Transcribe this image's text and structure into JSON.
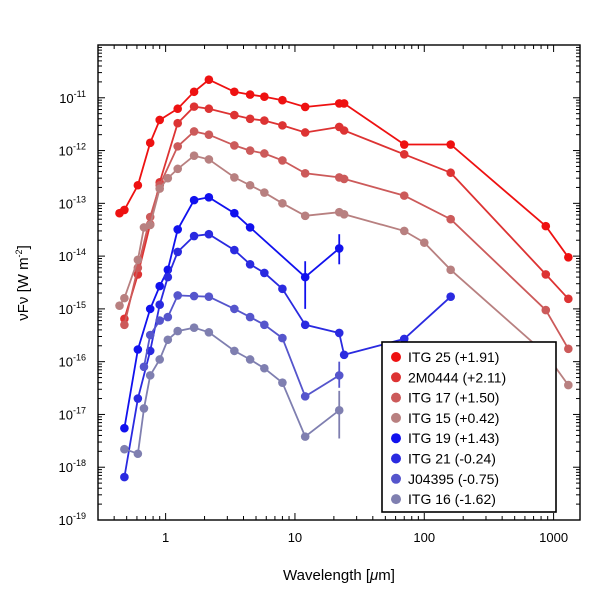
{
  "chart_data": {
    "type": "line",
    "xlabel_prefix": "Wavelength [",
    "xlabel_mu": "μ",
    "xlabel_suffix": "m]",
    "ylabel_main": "νFν [W m",
    "ylabel_sup": "-2",
    "ylabel_close": "]",
    "x_scale": "log",
    "y_scale": "log",
    "xlim": [
      0.3,
      1600
    ],
    "ylim": [
      1e-19,
      1e-10
    ],
    "x_ticks": [
      1,
      10,
      100,
      1000
    ],
    "x_tick_labels": [
      "1",
      "10",
      "100",
      "1000"
    ],
    "y_ticks": [
      -19,
      -18,
      -17,
      -16,
      -15,
      -14,
      -13,
      -12,
      -11
    ],
    "y_tick_base": "10",
    "y_tick_exps": [
      "-19",
      "-18",
      "-17",
      "-16",
      "-15",
      "-14",
      "-13",
      "-12",
      "-11"
    ],
    "legend_position": "lower-right",
    "series": [
      {
        "name": "ITG 25 (+1.91)",
        "color": "#ee1111",
        "points": [
          {
            "x": 0.44,
            "y": 6.5e-14
          },
          {
            "x": 0.48,
            "y": 7.5e-14
          },
          {
            "x": 0.61,
            "y": 2.2e-13
          },
          {
            "x": 0.76,
            "y": 1.4e-12
          },
          {
            "x": 0.9,
            "y": 3.8e-12
          },
          {
            "x": 1.24,
            "y": 6.2e-12
          },
          {
            "x": 1.66,
            "y": 1.3e-11
          },
          {
            "x": 2.16,
            "y": 2.2e-11
          },
          {
            "x": 3.4,
            "y": 1.3e-11
          },
          {
            "x": 4.5,
            "y": 1.15e-11
          },
          {
            "x": 5.8,
            "y": 1.05e-11
          },
          {
            "x": 8.0,
            "y": 9e-12
          },
          {
            "x": 12,
            "y": 6.7e-12
          },
          {
            "x": 22,
            "y": 7.8e-12
          },
          {
            "x": 24,
            "y": 7.8e-12
          },
          {
            "x": 70,
            "y": 1.3e-12
          },
          {
            "x": 160,
            "y": 1.3e-12
          },
          {
            "x": 870,
            "y": 3.7e-14
          },
          {
            "x": 1300,
            "y": 9.5e-15
          }
        ]
      },
      {
        "name": "2M0444 (+2.11)",
        "color": "#dd3333",
        "points": [
          {
            "x": 0.48,
            "y": 6.5e-16
          },
          {
            "x": 0.61,
            "y": 4.5e-15
          },
          {
            "x": 0.76,
            "y": 4e-14
          },
          {
            "x": 0.9,
            "y": 2.5e-13
          },
          {
            "x": 1.24,
            "y": 3.3e-12
          },
          {
            "x": 1.66,
            "y": 6.8e-12
          },
          {
            "x": 2.16,
            "y": 6.2e-12
          },
          {
            "x": 3.4,
            "y": 4.7e-12
          },
          {
            "x": 4.5,
            "y": 4e-12
          },
          {
            "x": 5.8,
            "y": 3.7e-12
          },
          {
            "x": 8.0,
            "y": 3e-12
          },
          {
            "x": 12,
            "y": 2.2e-12
          },
          {
            "x": 22,
            "y": 2.8e-12
          },
          {
            "x": 24,
            "y": 2.4e-12
          },
          {
            "x": 70,
            "y": 8.5e-13
          },
          {
            "x": 160,
            "y": 3.8e-13
          },
          {
            "x": 870,
            "y": 4.5e-15
          },
          {
            "x": 1300,
            "y": 1.55e-15
          }
        ]
      },
      {
        "name": "ITG 17 (+1.50)",
        "color": "#cc5a5a",
        "points": [
          {
            "x": 0.48,
            "y": 5e-16
          },
          {
            "x": 0.61,
            "y": 6e-15
          },
          {
            "x": 0.76,
            "y": 5.5e-14
          },
          {
            "x": 0.9,
            "y": 2.2e-13
          },
          {
            "x": 1.24,
            "y": 1.2e-12
          },
          {
            "x": 1.66,
            "y": 2.3e-12
          },
          {
            "x": 2.16,
            "y": 2e-12
          },
          {
            "x": 3.4,
            "y": 1.25e-12
          },
          {
            "x": 4.5,
            "y": 1e-12
          },
          {
            "x": 5.8,
            "y": 8.8e-13
          },
          {
            "x": 8.0,
            "y": 6.5e-13
          },
          {
            "x": 12,
            "y": 3.7e-13
          },
          {
            "x": 22,
            "y": 3.1e-13
          },
          {
            "x": 24,
            "y": 2.9e-13
          },
          {
            "x": 70,
            "y": 1.4e-13
          },
          {
            "x": 160,
            "y": 5e-14
          },
          {
            "x": 870,
            "y": 9.5e-16
          },
          {
            "x": 1300,
            "y": 1.75e-16
          }
        ]
      },
      {
        "name": "ITG 15 (+0.42)",
        "color": "#b88080",
        "points": [
          {
            "x": 0.44,
            "y": 1.15e-15
          },
          {
            "x": 0.48,
            "y": 1.6e-15
          },
          {
            "x": 0.61,
            "y": 8.5e-15
          },
          {
            "x": 0.68,
            "y": 3.5e-14
          },
          {
            "x": 0.76,
            "y": 3.9e-14
          },
          {
            "x": 0.9,
            "y": 1.9e-13
          },
          {
            "x": 1.04,
            "y": 3e-13
          },
          {
            "x": 1.24,
            "y": 4.5e-13
          },
          {
            "x": 1.66,
            "y": 8e-13
          },
          {
            "x": 2.16,
            "y": 6.8e-13
          },
          {
            "x": 3.4,
            "y": 3.1e-13
          },
          {
            "x": 4.5,
            "y": 2.2e-13
          },
          {
            "x": 5.8,
            "y": 1.6e-13
          },
          {
            "x": 8.0,
            "y": 1e-13
          },
          {
            "x": 12,
            "y": 5.8e-14
          },
          {
            "x": 22,
            "y": 6.8e-14
          },
          {
            "x": 24,
            "y": 6.2e-14
          },
          {
            "x": 70,
            "y": 3e-14
          },
          {
            "x": 100,
            "y": 1.8e-14
          },
          {
            "x": 160,
            "y": 5.5e-15
          },
          {
            "x": 870,
            "y": 1.4e-16
          },
          {
            "x": 1300,
            "y": 3.6e-17
          }
        ]
      },
      {
        "name": "ITG 19 (+1.43)",
        "color": "#1111ee",
        "points": [
          {
            "x": 0.48,
            "y": 5.5e-18
          },
          {
            "x": 0.61,
            "y": 1.7e-16
          },
          {
            "x": 0.76,
            "y": 1e-15
          },
          {
            "x": 0.9,
            "y": 2.7e-15
          },
          {
            "x": 1.04,
            "y": 5.5e-15
          },
          {
            "x": 1.24,
            "y": 3.2e-14
          },
          {
            "x": 1.66,
            "y": 1.15e-13
          },
          {
            "x": 2.16,
            "y": 1.3e-13
          },
          {
            "x": 3.4,
            "y": 6.5e-14
          },
          {
            "x": 4.5,
            "y": 3.5e-14
          },
          {
            "x": 12,
            "y": 4e-15,
            "err": [
              1e-15,
              8e-15
            ]
          },
          {
            "x": 22,
            "y": 1.4e-14,
            "err": [
              7e-15,
              2.6e-14
            ]
          }
        ]
      },
      {
        "name": "ITG 21 (-0.24)",
        "color": "#2a2ae0",
        "points": [
          {
            "x": 0.48,
            "y": 6.5e-19
          },
          {
            "x": 0.61,
            "y": 2e-17
          },
          {
            "x": 0.76,
            "y": 1.6e-16
          },
          {
            "x": 0.9,
            "y": 1.2e-15
          },
          {
            "x": 1.04,
            "y": 4e-15
          },
          {
            "x": 1.24,
            "y": 1.2e-14
          },
          {
            "x": 1.66,
            "y": 2.4e-14
          },
          {
            "x": 2.16,
            "y": 2.6e-14
          },
          {
            "x": 3.4,
            "y": 1.3e-14
          },
          {
            "x": 4.5,
            "y": 7e-15
          },
          {
            "x": 5.8,
            "y": 4.8e-15
          },
          {
            "x": 8.0,
            "y": 2.4e-15
          },
          {
            "x": 12,
            "y": 5e-16
          },
          {
            "x": 22,
            "y": 3.5e-16
          },
          {
            "x": 24,
            "y": 1.35e-16
          },
          {
            "x": 70,
            "y": 2.7e-16
          },
          {
            "x": 160,
            "y": 1.7e-15
          }
        ]
      },
      {
        "name": "J04395 (-0.75)",
        "color": "#5555cc",
        "points": [
          {
            "x": 0.68,
            "y": 8e-17
          },
          {
            "x": 0.76,
            "y": 3.2e-16
          },
          {
            "x": 0.9,
            "y": 6e-16
          },
          {
            "x": 1.04,
            "y": 7e-16
          },
          {
            "x": 1.24,
            "y": 1.8e-15
          },
          {
            "x": 1.66,
            "y": 1.75e-15
          },
          {
            "x": 2.16,
            "y": 1.7e-15
          },
          {
            "x": 3.4,
            "y": 1e-15
          },
          {
            "x": 4.5,
            "y": 7e-16
          },
          {
            "x": 5.8,
            "y": 5e-16
          },
          {
            "x": 8.0,
            "y": 2.8e-16
          },
          {
            "x": 12,
            "y": 2.2e-17
          },
          {
            "x": 22,
            "y": 5.5e-17,
            "err": [
              3.2e-17,
              1e-16
            ]
          }
        ]
      },
      {
        "name": "ITG 16 (-1.62)",
        "color": "#7f7fb0",
        "points": [
          {
            "x": 0.48,
            "y": 2.2e-18
          },
          {
            "x": 0.61,
            "y": 1.8e-18
          },
          {
            "x": 0.68,
            "y": 1.3e-17
          },
          {
            "x": 0.76,
            "y": 5.5e-17
          },
          {
            "x": 0.9,
            "y": 1.1e-16
          },
          {
            "x": 1.04,
            "y": 2.6e-16
          },
          {
            "x": 1.24,
            "y": 3.8e-16
          },
          {
            "x": 1.66,
            "y": 4.4e-16
          },
          {
            "x": 2.16,
            "y": 3.6e-16
          },
          {
            "x": 3.4,
            "y": 1.6e-16
          },
          {
            "x": 4.5,
            "y": 1.1e-16
          },
          {
            "x": 5.8,
            "y": 7.5e-17
          },
          {
            "x": 8.0,
            "y": 4e-17
          },
          {
            "x": 12,
            "y": 3.8e-18
          },
          {
            "x": 22,
            "y": 1.2e-17,
            "err": [
              3.5e-18,
              2.8e-17
            ]
          }
        ]
      }
    ]
  }
}
